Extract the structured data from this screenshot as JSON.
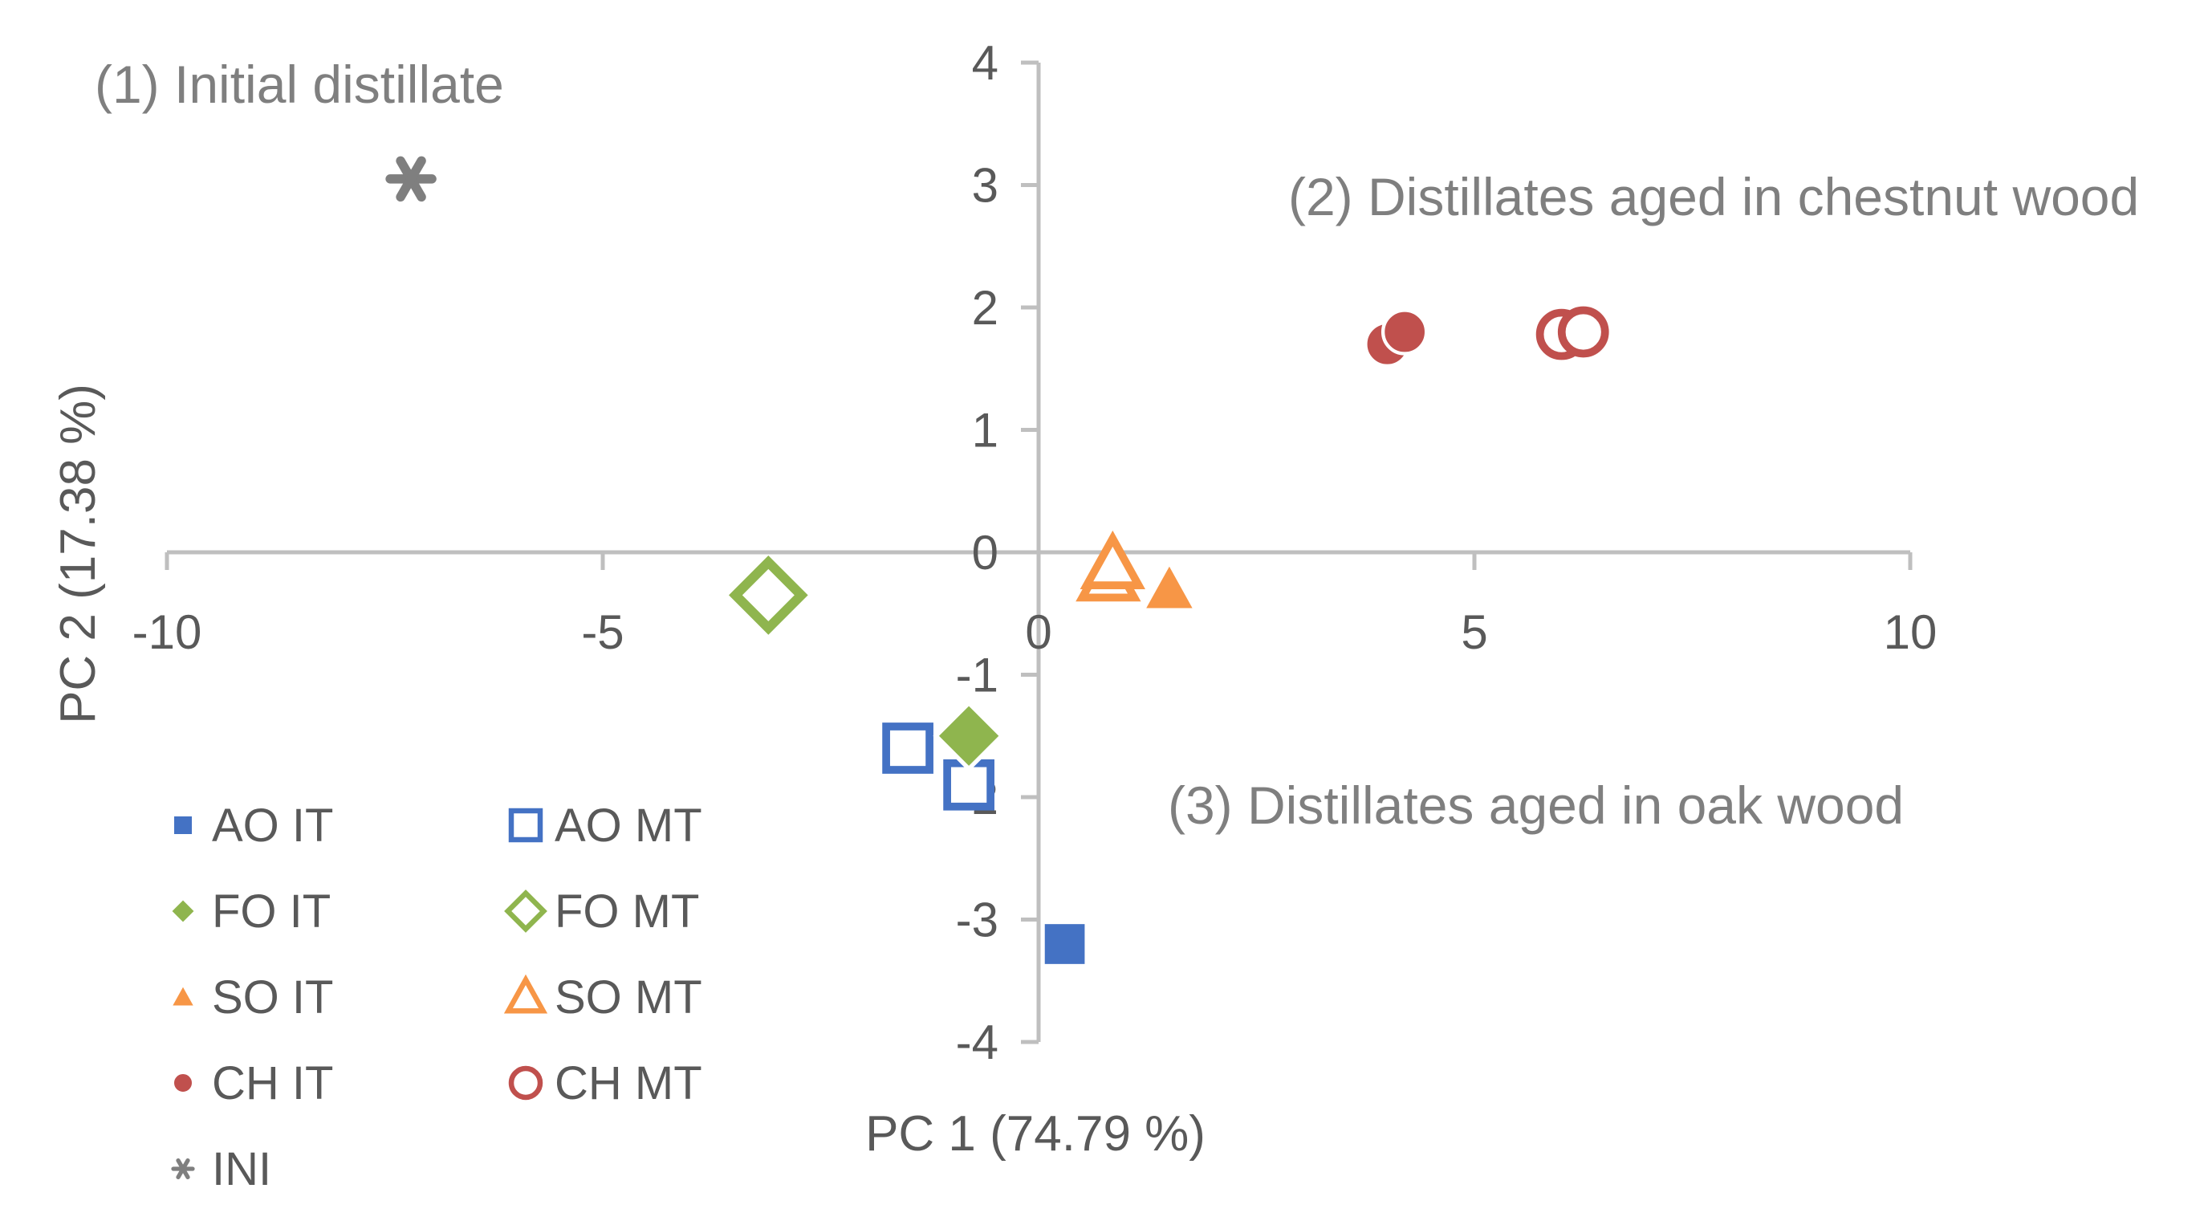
{
  "chart_data": {
    "type": "scatter",
    "title": "",
    "xlabel": "PC 1 (74.79 %)",
    "ylabel": "PC 2 (17.38 %)",
    "xlim": [
      -10,
      10
    ],
    "ylim": [
      -4,
      4
    ],
    "xticks": [
      -10,
      -5,
      0,
      5,
      10
    ],
    "yticks": [
      -4,
      -3,
      -2,
      -1,
      0,
      1,
      2,
      3,
      4
    ],
    "grid": false,
    "legend_position": "bottom-left",
    "annotations": [
      {
        "id": "initial",
        "text": "(1) Initial distillate"
      },
      {
        "id": "chestnut",
        "text": "(2) Distillates aged in chestnut wood"
      },
      {
        "id": "oak",
        "text": "(3) Distillates aged in oak wood"
      }
    ],
    "series": [
      {
        "name": "AO IT",
        "marker": "square",
        "filled": true,
        "color": "#4472c4",
        "points": [
          [
            0.3,
            -3.2
          ]
        ]
      },
      {
        "name": "AO MT",
        "marker": "square",
        "filled": false,
        "color": "#4472c4",
        "points": [
          [
            -1.5,
            -1.6
          ],
          [
            -0.8,
            -1.9
          ]
        ]
      },
      {
        "name": "FO IT",
        "marker": "diamond",
        "filled": true,
        "color": "#8fb54e",
        "points": [
          [
            -0.8,
            -1.5
          ]
        ]
      },
      {
        "name": "FO MT",
        "marker": "diamond",
        "filled": false,
        "color": "#8fb54e",
        "points": [
          [
            -3.1,
            -0.35
          ]
        ]
      },
      {
        "name": "SO IT",
        "marker": "triangle",
        "filled": true,
        "color": "#f79646",
        "points": [
          [
            1.5,
            -0.3
          ]
        ]
      },
      {
        "name": "SO MT",
        "marker": "triangle",
        "filled": false,
        "color": "#f79646",
        "points": [
          [
            0.8,
            -0.2
          ],
          [
            0.85,
            -0.1
          ]
        ]
      },
      {
        "name": "CH IT",
        "marker": "circle",
        "filled": true,
        "color": "#c0504d",
        "points": [
          [
            4.0,
            1.7
          ],
          [
            4.2,
            1.8
          ]
        ]
      },
      {
        "name": "CH MT",
        "marker": "circle",
        "filled": false,
        "color": "#c0504d",
        "points": [
          [
            6.0,
            1.78
          ],
          [
            6.25,
            1.8
          ]
        ]
      },
      {
        "name": "INI",
        "marker": "asterisk",
        "filled": true,
        "color": "#7f7f7f",
        "points": [
          [
            -7.2,
            3.05
          ]
        ]
      }
    ]
  }
}
